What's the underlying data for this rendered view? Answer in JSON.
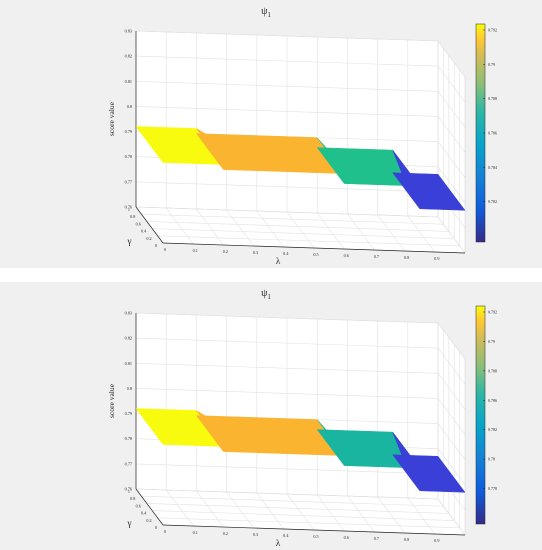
{
  "chart_data": [
    {
      "type": "surface",
      "title": "ψ",
      "title_subscript": "1",
      "xlabel": "λ",
      "ylabel": "γ",
      "zlabel": "score value",
      "xlim": [
        0,
        1
      ],
      "ylim": [
        0,
        1
      ],
      "zlim": [
        0.76,
        0.83
      ],
      "x_ticks": [
        "0",
        "0.1",
        "0.2",
        "0.3",
        "0.4",
        "0.5",
        "0.6",
        "0.7",
        "0.8",
        "0.9"
      ],
      "y_ticks": [
        "0",
        "0.2",
        "0.4",
        "0.6",
        "0.8",
        "1"
      ],
      "z_ticks": [
        "0.76",
        "0.77",
        "0.78",
        "0.79",
        "0.8",
        "0.81",
        "0.82",
        "0.83"
      ],
      "grid": true,
      "colormap": "parula",
      "colorbar_range": [
        0.75,
        0.79
      ],
      "colorbar_ticks": [
        "0.792",
        "0.79",
        "0.788",
        "0.786",
        "0.784",
        "0.782"
      ],
      "surface_levels": [
        {
          "x_range": [
            0,
            0.2
          ],
          "z": 0.792,
          "color": "#f9fb0e"
        },
        {
          "x_range": [
            0.2,
            0.6
          ],
          "z": 0.79,
          "color": "#fbb430"
        },
        {
          "x_range": [
            0.6,
            0.85
          ],
          "z": 0.786,
          "color": "#20c08c"
        },
        {
          "x_range": [
            0.85,
            1.0
          ],
          "z": 0.777,
          "color": "#3a3fd8"
        }
      ]
    },
    {
      "type": "surface",
      "title": "ψ",
      "title_subscript": "1",
      "xlabel": "λ",
      "ylabel": "γ",
      "zlabel": "score value",
      "xlim": [
        0,
        1
      ],
      "ylim": [
        0,
        1
      ],
      "zlim": [
        0.76,
        0.83
      ],
      "x_ticks": [
        "0",
        "0.1",
        "0.2",
        "0.3",
        "0.4",
        "0.5",
        "0.6",
        "0.7",
        "0.8",
        "0.9"
      ],
      "y_ticks": [
        "0",
        "0.2",
        "0.4",
        "0.6",
        "0.8",
        "1"
      ],
      "z_ticks": [
        "0.76",
        "0.77",
        "0.78",
        "0.79",
        "0.8",
        "0.81",
        "0.82",
        "0.83"
      ],
      "grid": true,
      "colormap": "parula",
      "colorbar_range": [
        0.75,
        0.79
      ],
      "colorbar_ticks": [
        "0.792",
        "0.79",
        "0.788",
        "0.786",
        "0.782",
        "0.78",
        "0.778"
      ],
      "surface_levels": [
        {
          "x_range": [
            0,
            0.2
          ],
          "z": 0.792,
          "color": "#f9fb0e"
        },
        {
          "x_range": [
            0.2,
            0.6
          ],
          "z": 0.79,
          "color": "#fbb430"
        },
        {
          "x_range": [
            0.6,
            0.85
          ],
          "z": 0.786,
          "color": "#19b5a0"
        },
        {
          "x_range": [
            0.85,
            1.0
          ],
          "z": 0.777,
          "color": "#3a3fd8"
        }
      ]
    }
  ]
}
